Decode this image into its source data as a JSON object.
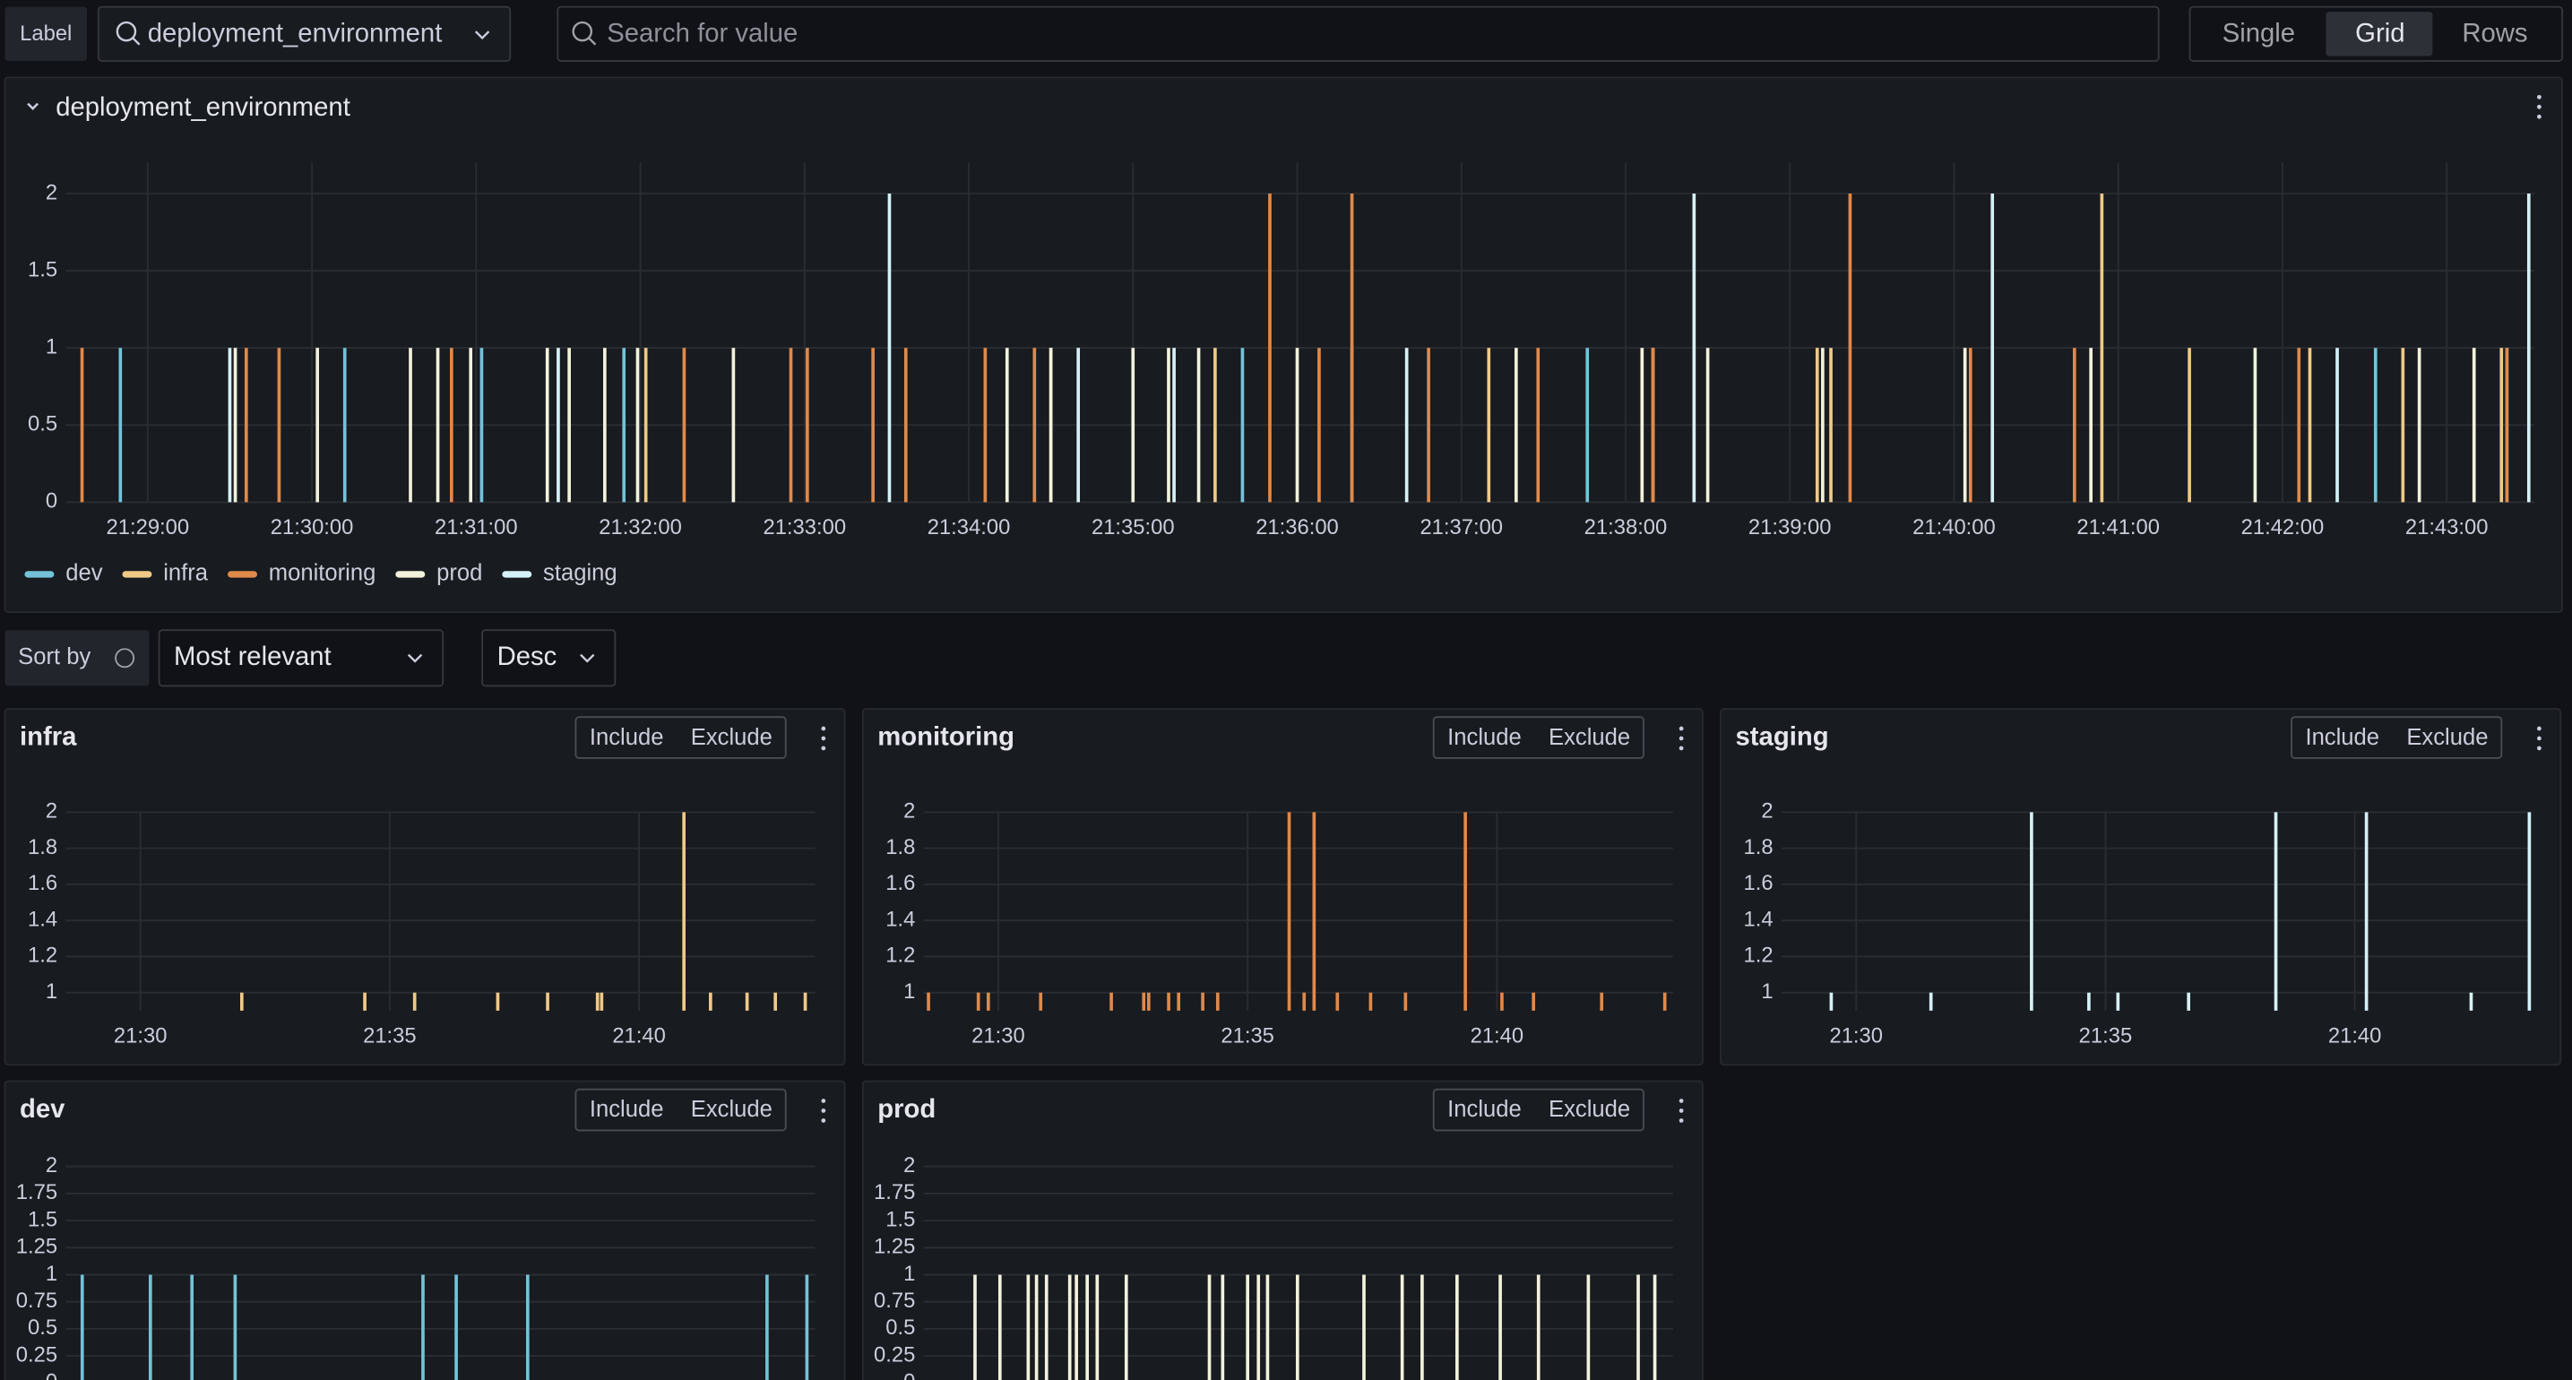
{
  "toolbar": {
    "label": "Label",
    "select": "deployment_environment",
    "search": "Search for value",
    "views": [
      "Single",
      "Grid",
      "Rows"
    ]
  },
  "sort": {
    "label": "Sort by",
    "value": "Most relevant",
    "order": "Desc"
  },
  "buttons": [
    "Include",
    "Exclude"
  ],
  "chart_data": {
    "type": "bar",
    "title": "deployment_environment",
    "xlim": [
      "21:28:30",
      "21:43:32"
    ],
    "xticks": [
      "21:29:00",
      "21:30:00",
      "21:31:00",
      "21:32:00",
      "21:33:00",
      "21:34:00",
      "21:35:00",
      "21:36:00",
      "21:37:00",
      "21:38:00",
      "21:39:00",
      "21:40:00",
      "21:41:00",
      "21:42:00",
      "21:43:00"
    ],
    "ylim": [
      0,
      2.2
    ],
    "yticks": [
      0,
      0.5,
      1,
      1.5,
      2
    ],
    "grid": true,
    "panel_xticks": [
      {
        "value": "21:30:00",
        "label": "21:30"
      },
      {
        "value": "21:35:00",
        "label": "21:35"
      },
      {
        "value": "21:40:00",
        "label": "21:40"
      }
    ],
    "series": [
      {
        "name": "dev",
        "color": "#73c2d9",
        "x": [
          "21:28:50",
          "21:30:12",
          "21:31:02",
          "21:31:54",
          "21:35:40",
          "21:36:20",
          "21:37:46",
          "21:42:34",
          "21:43:22"
        ],
        "values": [
          1,
          1,
          1,
          1,
          1,
          1,
          1,
          1,
          1
        ],
        "panel_ylim": [
          0,
          2
        ],
        "panel_yticks": [
          0,
          0.25,
          0.5,
          0.75,
          1,
          1.25,
          1.5,
          1.75,
          2
        ]
      },
      {
        "name": "infra",
        "color": "#f0c987",
        "x": [
          "21:32:02",
          "21:34:30",
          "21:35:30",
          "21:37:10",
          "21:38:10",
          "21:39:10",
          "21:39:15",
          "21:40:54",
          "21:41:26",
          "21:42:10",
          "21:42:44",
          "21:43:20"
        ],
        "values": [
          1,
          1,
          1,
          1,
          1,
          1,
          1,
          2,
          1,
          1,
          1,
          1
        ],
        "panel_ylim": [
          0.9,
          2
        ],
        "panel_yticks": [
          1,
          1.2,
          1.4,
          1.6,
          1.8,
          2
        ]
      },
      {
        "name": "monitoring",
        "color": "#e0894a",
        "x": [
          "21:28:36",
          "21:29:36",
          "21:29:48",
          "21:30:51",
          "21:32:16",
          "21:32:55",
          "21:33:01",
          "21:33:25",
          "21:33:37",
          "21:34:06",
          "21:34:24",
          "21:35:50",
          "21:36:08",
          "21:36:20",
          "21:36:48",
          "21:37:28",
          "21:38:10",
          "21:39:22",
          "21:40:06",
          "21:40:44",
          "21:42:06",
          "21:43:22"
        ],
        "values": [
          1,
          1,
          1,
          1,
          1,
          1,
          1,
          1,
          1,
          1,
          1,
          2,
          1,
          2,
          1,
          1,
          1,
          2,
          1,
          1,
          1,
          1
        ],
        "panel_ylim": [
          0.9,
          2
        ],
        "panel_yticks": [
          1,
          1.2,
          1.4,
          1.6,
          1.8,
          2
        ]
      },
      {
        "name": "prod",
        "color": "#f2f2dc",
        "x": [
          "21:29:32",
          "21:30:02",
          "21:30:36",
          "21:30:46",
          "21:30:58",
          "21:31:26",
          "21:31:34",
          "21:31:47",
          "21:31:59",
          "21:32:34",
          "21:34:14",
          "21:34:30",
          "21:35:00",
          "21:35:13",
          "21:35:24",
          "21:36:00",
          "21:37:20",
          "21:38:06",
          "21:38:30",
          "21:39:12",
          "21:40:04",
          "21:40:50",
          "21:41:50",
          "21:42:50",
          "21:43:10"
        ],
        "values": [
          1,
          1,
          1,
          1,
          1,
          1,
          1,
          1,
          1,
          1,
          1,
          1,
          1,
          1,
          1,
          1,
          1,
          1,
          1,
          1,
          1,
          1,
          1,
          1,
          1
        ],
        "panel_ylim": [
          0,
          2
        ],
        "panel_yticks": [
          0,
          0.25,
          0.5,
          0.75,
          1,
          1.25,
          1.5,
          1.75,
          2
        ]
      },
      {
        "name": "staging",
        "color": "#d4f1f7",
        "x": [
          "21:29:30",
          "21:31:30",
          "21:33:31",
          "21:34:40",
          "21:35:15",
          "21:36:40",
          "21:38:25",
          "21:40:14",
          "21:42:20",
          "21:43:30"
        ],
        "values": [
          1,
          1,
          2,
          1,
          1,
          1,
          2,
          2,
          1,
          2
        ],
        "panel_ylim": [
          0.9,
          2
        ],
        "panel_yticks": [
          1,
          1.2,
          1.4,
          1.6,
          1.8,
          2
        ]
      }
    ]
  }
}
